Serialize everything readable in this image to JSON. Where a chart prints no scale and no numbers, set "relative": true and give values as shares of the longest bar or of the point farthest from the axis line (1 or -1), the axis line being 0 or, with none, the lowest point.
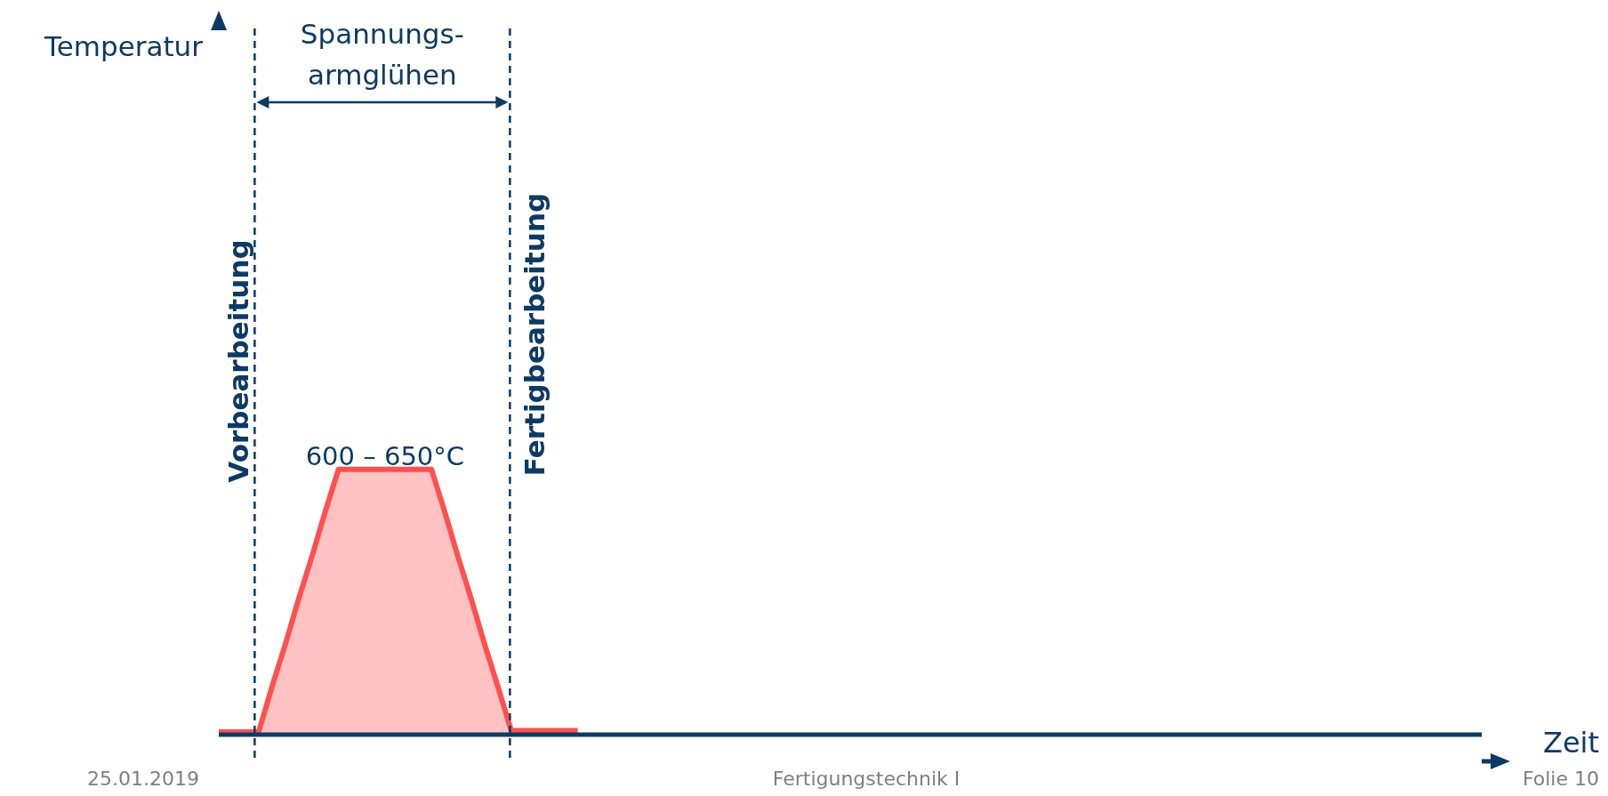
{
  "chart_data": {
    "type": "area",
    "relative": true,
    "xlabel": "Zeit",
    "categories": [
      null,
      null,
      null,
      null,
      null,
      null,
      null,
      null,
      null,
      null,
      null,
      null,
      null,
      null,
      null,
      null,
      null,
      null,
      null,
      null,
      null,
      null,
      null,
      null,
      null,
      null,
      null,
      null,
      null,
      null,
      null,
      null,
      null,
      null,
      null,
      null,
      null,
      null,
      null,
      null,
      null,
      null,
      null,
      null,
      null,
      null,
      null,
      null,
      null,
      null,
      null,
      null,
      null,
      null,
      null,
      null,
      null,
      null,
      null,
      null,
      null,
      null,
      null,
      null,
      null,
      null,
      null,
      null,
      null,
      null,
      null,
      null,
      null,
      null,
      null,
      null,
      null,
      null,
      null,
      null,
      null,
      null,
      null,
      null,
      null,
      null,
      null,
      null,
      null,
      null,
      null,
      null,
      null,
      null,
      null,
      null
    ],
    "series": [
      {
        "color": "#ff5050",
        "values": [
          0.01,
          0.01,
          0.01,
          0.01,
          0.18,
          0.34,
          0.51,
          0.67,
          0.84,
          1,
          1,
          1,
          1,
          1,
          1,
          1,
          1,
          0.84,
          0.67,
          0.51,
          0.34,
          0.18,
          0.015,
          0.015,
          0.015,
          0.015,
          0.015,
          0.015,
          null,
          null,
          null,
          null,
          null,
          null,
          null,
          null,
          null,
          null,
          null,
          null,
          null,
          null,
          null,
          null,
          null,
          null,
          null,
          null,
          null,
          null,
          null,
          null,
          null,
          null,
          null,
          null,
          null,
          null,
          null,
          null,
          null,
          null,
          null,
          null,
          null,
          null,
          null,
          null,
          null,
          null,
          null,
          null,
          null,
          null,
          null,
          null,
          null,
          null,
          null,
          null,
          null,
          null,
          null,
          null,
          null,
          null,
          null,
          null,
          null,
          null,
          null,
          null,
          null,
          null,
          null,
          null
        ]
      }
    ],
    "annotations": [
      "Spannungs-\narmglühen",
      "Vorbearbeitung",
      "Fertigbearbeitung",
      "600 – 650°C",
      "25.01.2019",
      "Fertigungstechnik I",
      "Folie 10",
      "Temperatur"
    ]
  }
}
